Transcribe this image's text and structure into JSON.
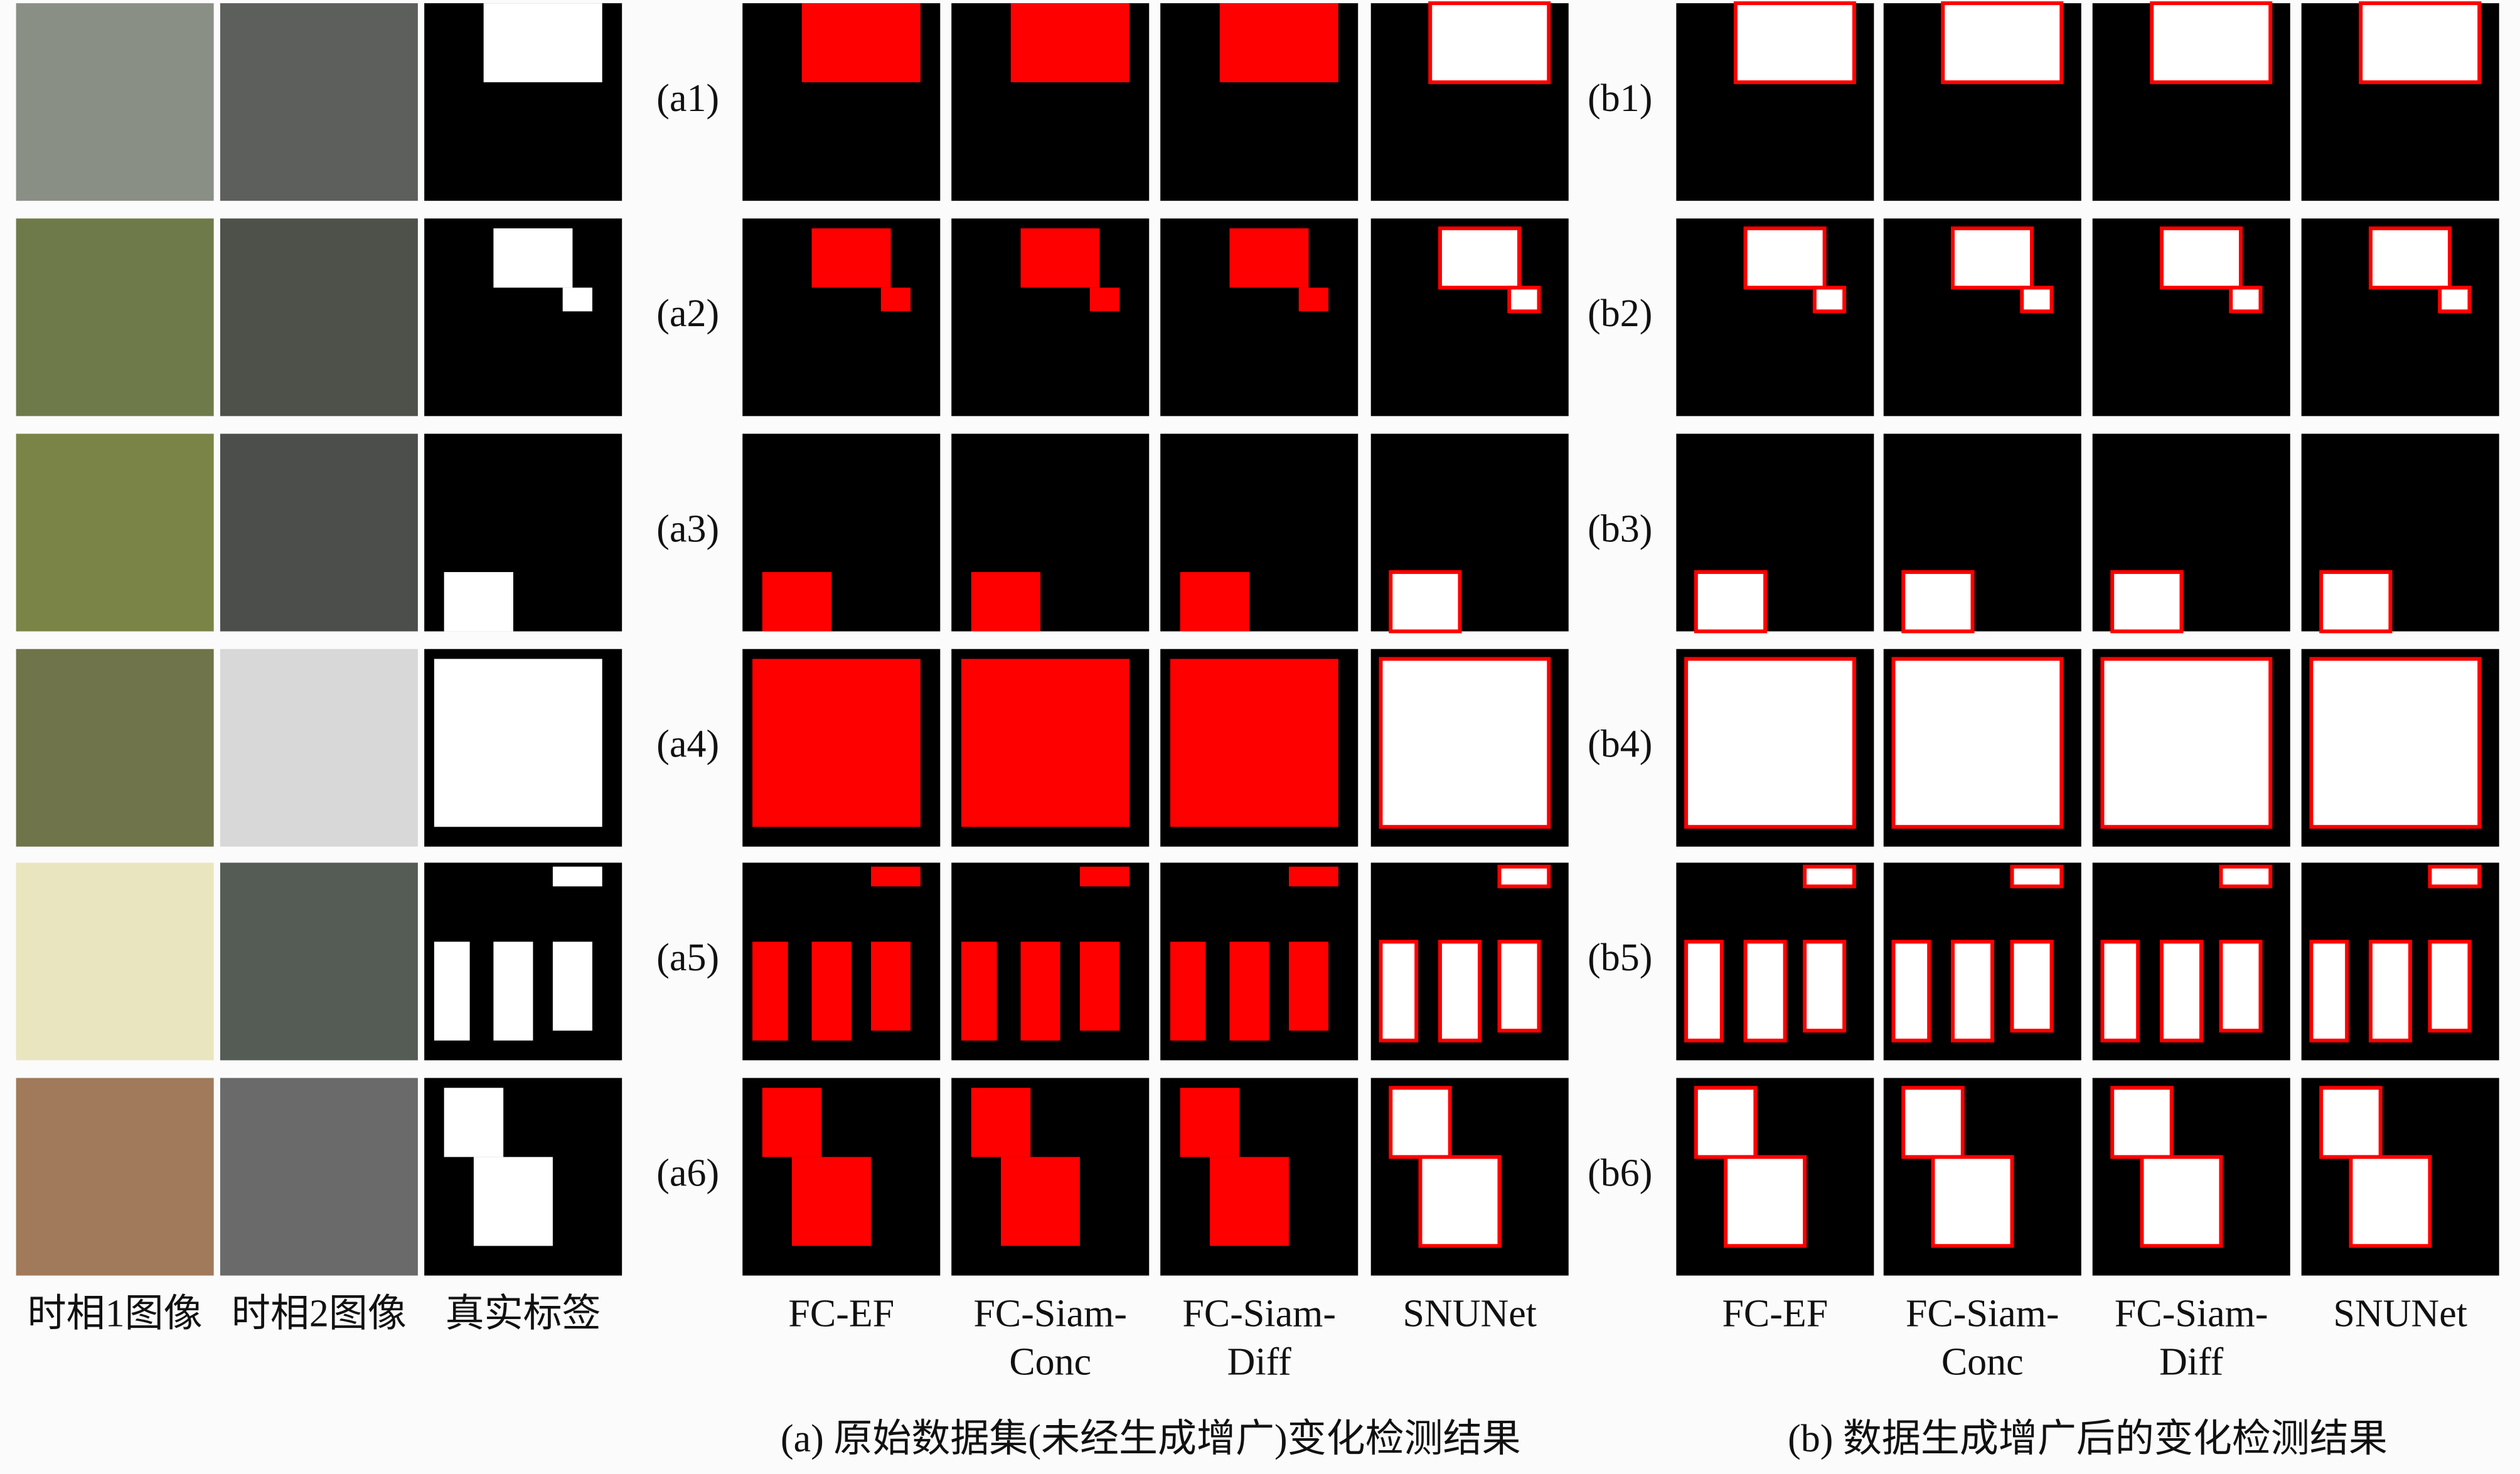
{
  "source_labels": [
    "时相1图像",
    "时相2图像",
    "真实标签"
  ],
  "row_labels_a": [
    "(a1)",
    "(a2)",
    "(a3)",
    "(a4)",
    "(a5)",
    "(a6)"
  ],
  "row_labels_b": [
    "(b1)",
    "(b2)",
    "(b3)",
    "(b4)",
    "(b5)",
    "(b6)"
  ],
  "method_labels": [
    [
      "FC-EF"
    ],
    [
      "FC-Siam-",
      "Conc"
    ],
    [
      "FC-Siam-",
      "Diff"
    ],
    [
      "SNUNet"
    ]
  ],
  "captions": [
    "(a) 原始数据集(未经生成增广)变化检测结果",
    "(b) 数据生成增广后的变化检测结果"
  ]
}
